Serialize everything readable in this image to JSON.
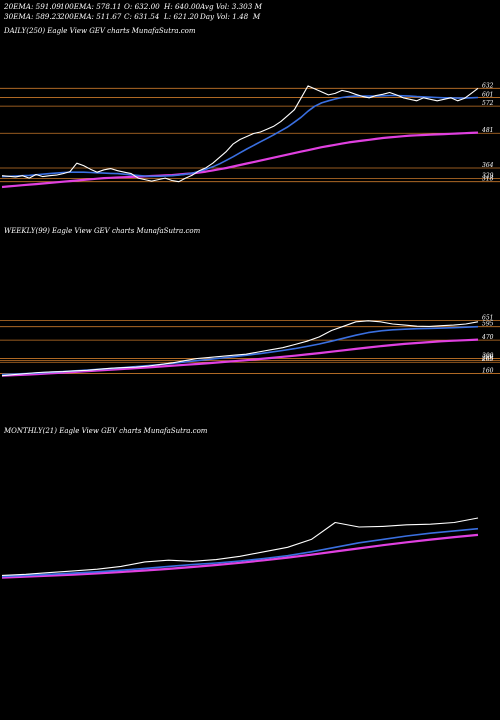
{
  "header": {
    "ema20": "20EMA: 591.09",
    "ema100": "100EMA: 578.11",
    "open": "O: 632.00",
    "high": "H: 640.00",
    "avgvol": "Avg Vol: 3.303 M",
    "ema30": "30EMA: 589.23",
    "ema200": "200EMA: 511.67",
    "close": "C: 631.54",
    "low": "L: 621.20",
    "dayvol": "Day Vol: 1.48  M"
  },
  "colors": {
    "background": "#000000",
    "price": "#ffffff",
    "ema_short": "#3a6fe0",
    "ema_long": "#e040e0",
    "level_line": "#c8782a"
  },
  "chart_data": [
    {
      "type": "line",
      "label": "DAILY(250) Eagle   View  GEV charts MunafaSutra.com",
      "levels": [
        632,
        601,
        572,
        481,
        364,
        329,
        318
      ],
      "level_labels": [
        "632",
        "601",
        "572",
        "481",
        "364",
        "329",
        "318"
      ],
      "ylim": [
        290,
        660
      ],
      "series": [
        {
          "key": "price",
          "values": [
            338,
            336,
            334,
            338,
            330,
            342,
            335,
            338,
            340,
            345,
            352,
            380,
            372,
            360,
            350,
            358,
            362,
            355,
            350,
            345,
            330,
            325,
            320,
            325,
            330,
            322,
            318,
            330,
            340,
            355,
            365,
            380,
            400,
            420,
            445,
            460,
            470,
            480,
            485,
            495,
            505,
            520,
            540,
            560,
            600,
            640,
            630,
            620,
            610,
            615,
            625,
            620,
            612,
            605,
            600,
            608,
            612,
            618,
            610,
            600,
            595,
            590,
            600,
            595,
            590,
            595,
            600,
            590,
            598,
            615,
            632
          ]
        },
        {
          "key": "ema_short",
          "values": [
            335,
            336,
            337,
            338,
            339,
            341,
            343,
            345,
            347,
            349,
            350,
            350,
            350,
            349,
            348,
            347,
            346,
            345,
            343,
            341,
            339,
            337,
            336,
            336,
            337,
            338,
            340,
            343,
            347,
            353,
            360,
            368,
            378,
            390,
            402,
            415,
            428,
            440,
            452,
            464,
            476,
            489,
            502,
            518,
            535,
            555,
            572,
            583,
            590,
            596,
            601,
            604,
            606,
            606,
            606,
            606,
            607,
            608,
            608,
            607,
            606,
            604,
            603,
            602,
            601,
            600,
            600,
            599,
            599,
            600,
            601
          ]
        },
        {
          "key": "ema_long",
          "values": [
            300,
            302,
            304,
            306,
            308,
            310,
            312,
            314,
            316,
            318,
            320,
            322,
            324,
            326,
            328,
            330,
            331,
            332,
            333,
            334,
            335,
            336,
            337,
            338,
            339,
            340,
            342,
            344,
            346,
            349,
            352,
            356,
            360,
            364,
            369,
            374,
            379,
            384,
            389,
            394,
            399,
            404,
            409,
            414,
            419,
            424,
            429,
            434,
            438,
            442,
            446,
            450,
            453,
            456,
            459,
            462,
            465,
            467,
            469,
            471,
            473,
            474,
            475,
            476,
            477,
            478,
            479,
            480,
            481,
            482,
            483
          ]
        }
      ]
    },
    {
      "type": "line",
      "label": "WEEKLY(99) Eagle   View  GEV charts MunafaSutra.com",
      "levels": [
        651,
        595,
        470,
        300,
        280,
        265,
        160
      ],
      "level_labels": [
        "651",
        "595",
        "470",
        "300",
        "280",
        "265",
        "160"
      ],
      "ylim": [
        100,
        750
      ],
      "series": [
        {
          "key": "price",
          "values": [
            140,
            150,
            160,
            170,
            175,
            178,
            185,
            190,
            200,
            210,
            215,
            220,
            230,
            245,
            260,
            280,
            300,
            310,
            320,
            330,
            340,
            360,
            380,
            400,
            430,
            460,
            500,
            560,
            600,
            640,
            650,
            640,
            620,
            610,
            600,
            598,
            604,
            610,
            620,
            640
          ]
        },
        {
          "key": "ema_short",
          "values": [
            150,
            155,
            160,
            166,
            172,
            178,
            185,
            192,
            200,
            208,
            216,
            225,
            234,
            244,
            255,
            267,
            280,
            292,
            304,
            316,
            329,
            343,
            358,
            374,
            392,
            412,
            434,
            460,
            488,
            516,
            540,
            556,
            566,
            572,
            576,
            579,
            582,
            586,
            590,
            595
          ]
        },
        {
          "key": "ema_long",
          "values": [
            140,
            145,
            150,
            156,
            162,
            168,
            175,
            182,
            189,
            196,
            203,
            210,
            217,
            225,
            233,
            241,
            249,
            257,
            266,
            275,
            284,
            294,
            304,
            315,
            326,
            338,
            350,
            363,
            376,
            389,
            402,
            414,
            425,
            435,
            444,
            452,
            459,
            465,
            470,
            475
          ]
        }
      ]
    },
    {
      "type": "line",
      "label": "MONTHLY(21) Eagle   View  GEV charts MunafaSutra.com",
      "levels": [],
      "level_labels": [],
      "ylim": [
        0,
        800
      ],
      "series": [
        {
          "key": "price",
          "values": [
            130,
            140,
            155,
            170,
            185,
            210,
            250,
            265,
            255,
            270,
            300,
            340,
            380,
            450,
            600,
            560,
            565,
            580,
            585,
            600,
            640
          ]
        },
        {
          "key": "ema_short",
          "values": [
            120,
            130,
            140,
            150,
            162,
            176,
            192,
            210,
            226,
            240,
            258,
            280,
            305,
            340,
            380,
            420,
            450,
            480,
            505,
            525,
            545
          ]
        },
        {
          "key": "ema_long",
          "values": [
            110,
            118,
            127,
            137,
            148,
            160,
            173,
            188,
            204,
            222,
            242,
            264,
            288,
            314,
            342,
            370,
            398,
            424,
            448,
            470,
            490
          ]
        }
      ]
    }
  ]
}
